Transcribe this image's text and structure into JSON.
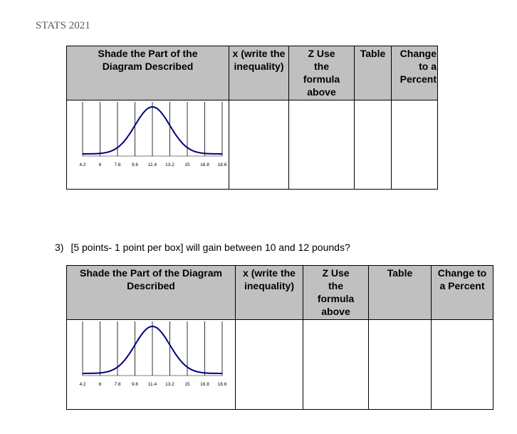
{
  "header": {
    "title": "STATS 2021"
  },
  "tables": [
    {
      "headers": {
        "shade": "Shade the Part of the Diagram Described",
        "x": "x (write the inequality)",
        "z": "Z Use the formula above",
        "table": "Table",
        "percent": "Change to a Percent"
      }
    },
    {
      "headers": {
        "shade": "Shade the Part of the Diagram Described",
        "x": "x (write the inequality)",
        "z": "Z Use the formula above",
        "table": "Table",
        "percent": "Change to a Percent"
      }
    }
  ],
  "question3": {
    "number": "3)",
    "text": "[5 points- 1 point per box] will gain between 10 and 12 pounds?"
  },
  "diagram": {
    "tick_labels": [
      "4.2",
      "6",
      "7.8",
      "9.6",
      "11.4",
      "13.2",
      "15",
      "16.8",
      "18.6"
    ],
    "curve_color": "#00007f"
  }
}
